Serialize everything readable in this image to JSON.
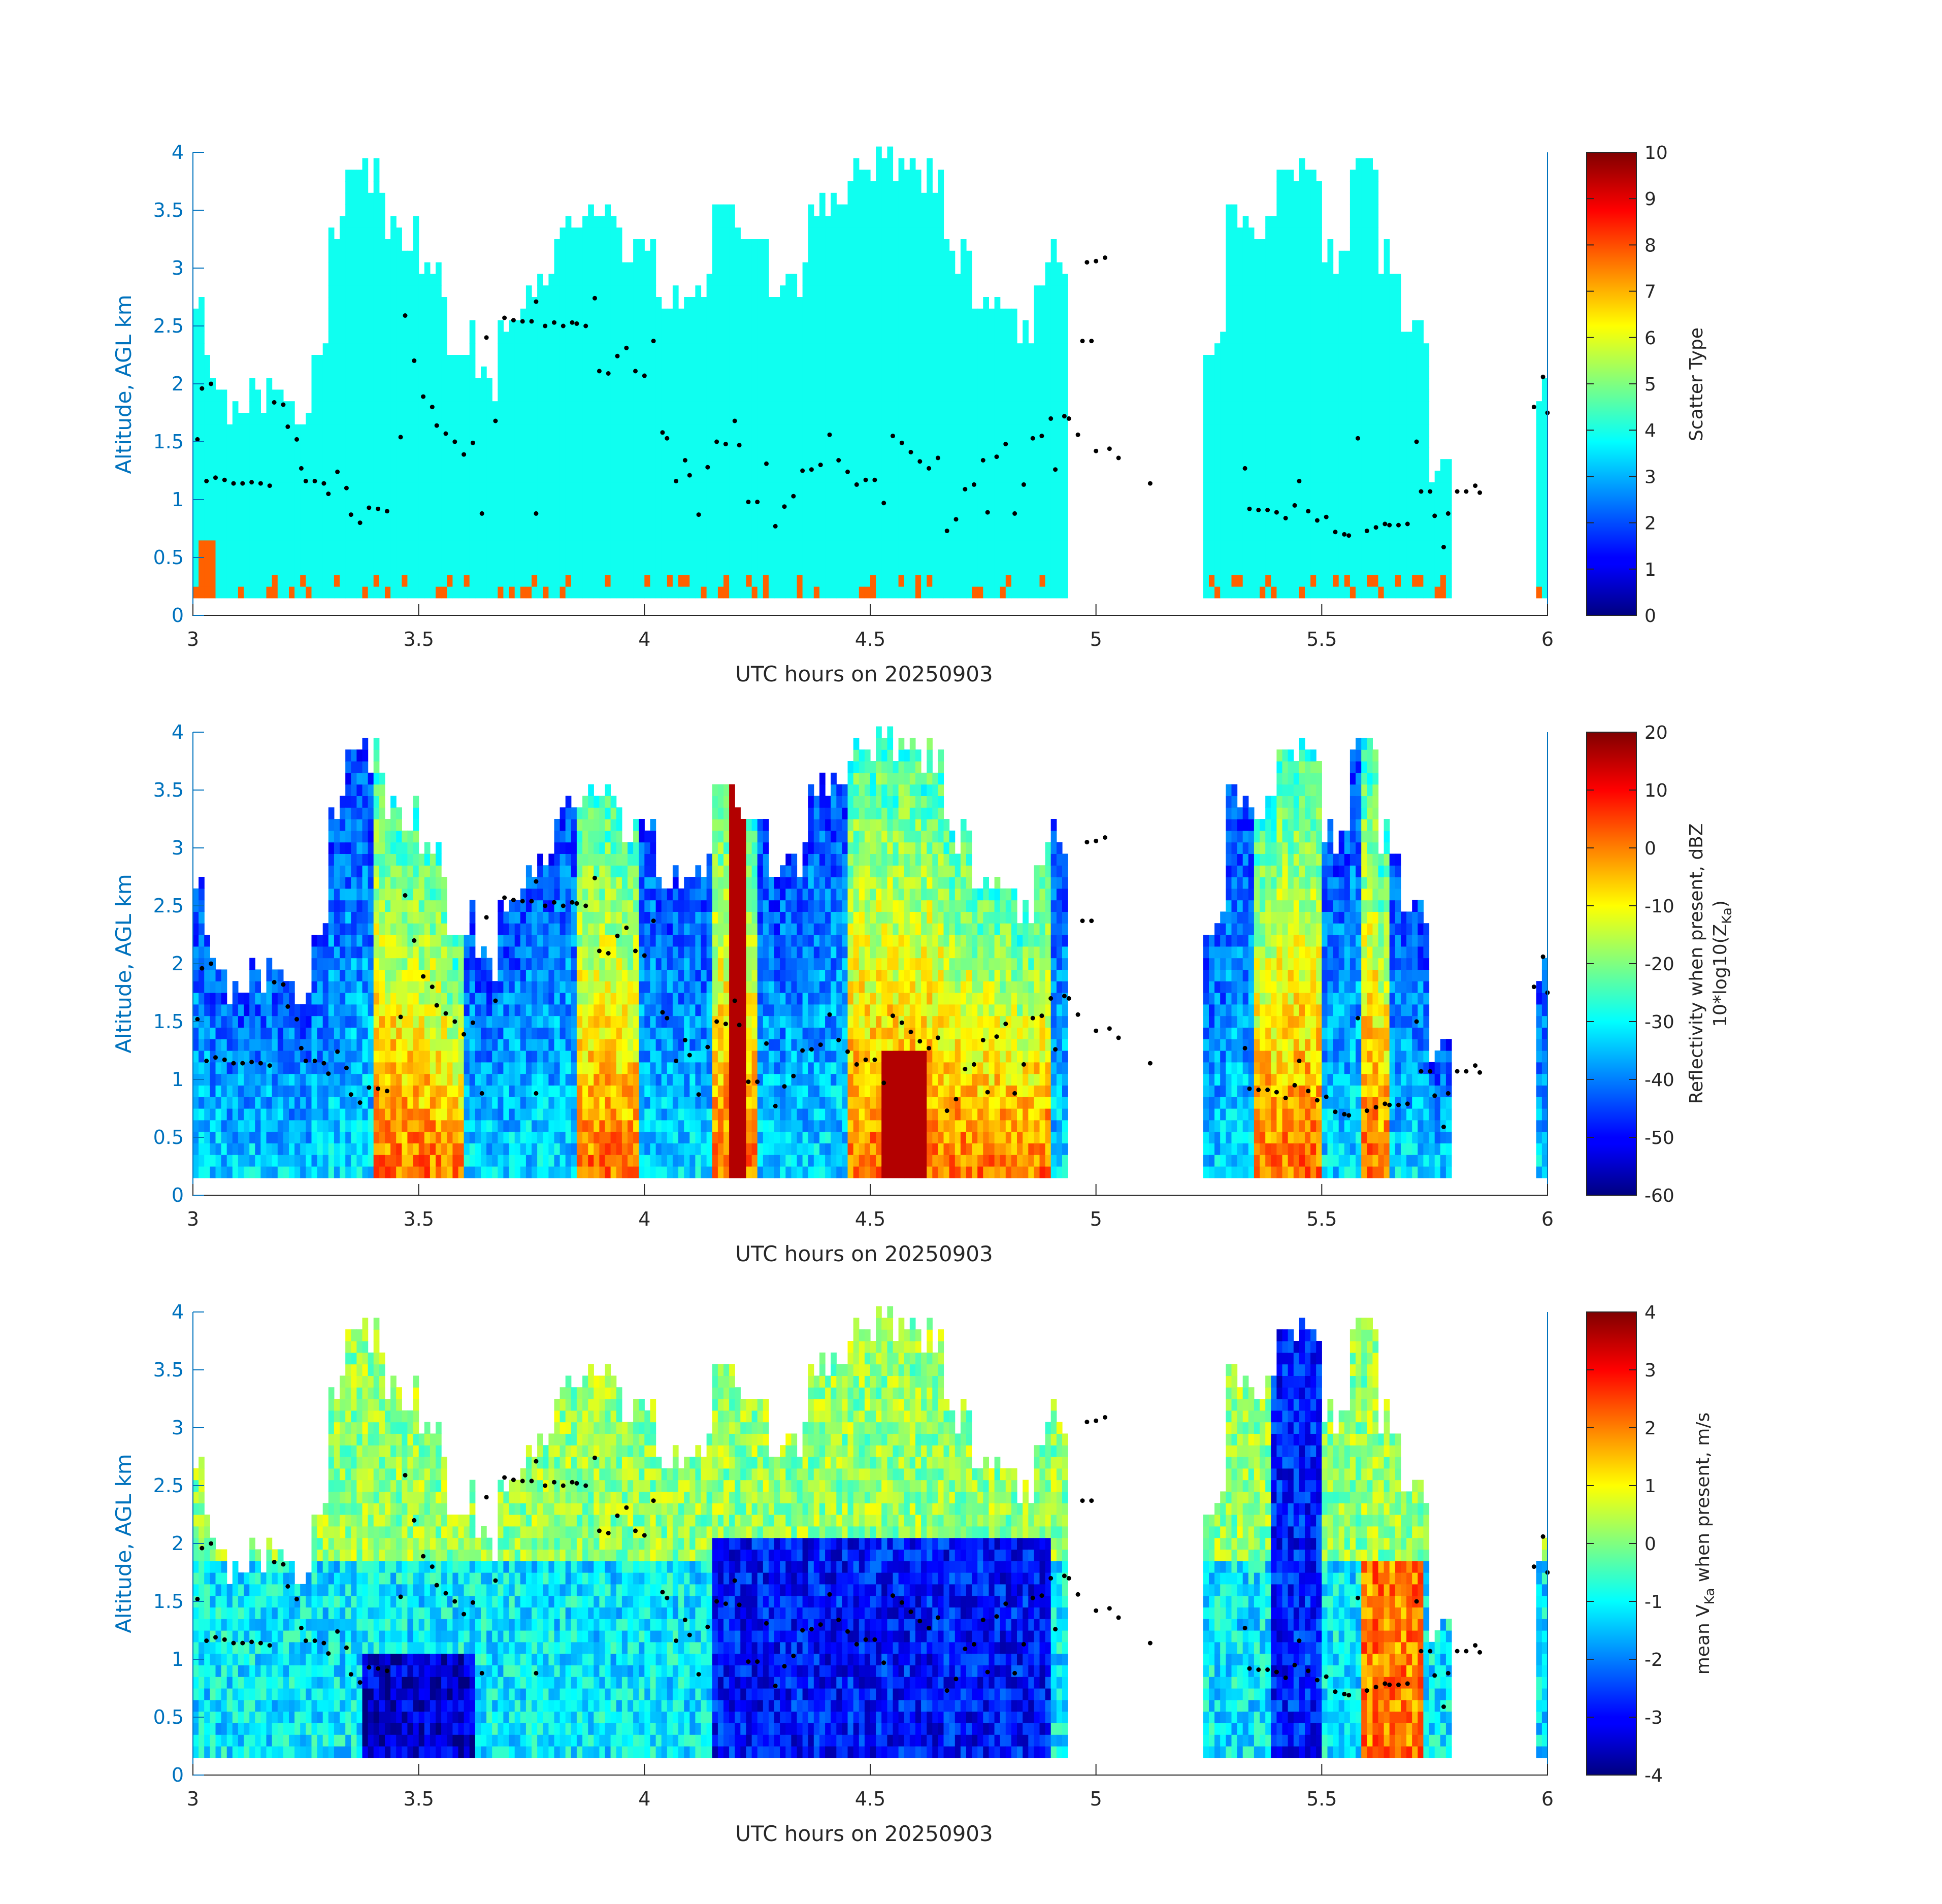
{
  "chart_data": [
    {
      "type": "heatmap",
      "xlabel": "UTC hours on 20250903",
      "ylabel": "Altitude, AGL km",
      "xlim": [
        3,
        6
      ],
      "ylim": [
        0,
        4
      ],
      "xticks": [
        "3",
        "3.5",
        "4",
        "4.5",
        "5",
        "5.5",
        "6"
      ],
      "yticks": [
        "0",
        "0.5",
        "1",
        "1.5",
        "2",
        "2.5",
        "3",
        "3.5",
        "4"
      ],
      "colorbar": {
        "label": "Scatter Type",
        "label_line2": "",
        "clim": [
          0,
          10
        ],
        "ticks": [
          "0",
          "1",
          "2",
          "3",
          "4",
          "5",
          "6",
          "7",
          "8",
          "9",
          "10"
        ]
      },
      "colormap": "jet",
      "field": "scatter",
      "summary": "Dominant scatter type ~3.8 (cyan) through most echo; type ~8 (red-orange) near the surface at isolated times"
    },
    {
      "type": "heatmap",
      "xlabel": "UTC hours on 20250903",
      "ylabel": "Altitude, AGL km",
      "xlim": [
        3,
        6
      ],
      "ylim": [
        0,
        4
      ],
      "xticks": [
        "3",
        "3.5",
        "4",
        "4.5",
        "5",
        "5.5",
        "6"
      ],
      "yticks": [
        "0",
        "0.5",
        "1",
        "1.5",
        "2",
        "2.5",
        "3",
        "3.5",
        "4"
      ],
      "colorbar": {
        "label": "Reflectivity when present, dBZ",
        "label_line2": "10*log10(Z",
        "label_line2_sub": "Ka",
        "label_line2_end": ")",
        "clim": [
          -60,
          20
        ],
        "ticks": [
          "-60",
          "-50",
          "-40",
          "-30",
          "-20",
          "-10",
          "0",
          "10",
          "20"
        ]
      },
      "colormap": "jet",
      "field": "reflectivity"
    },
    {
      "type": "heatmap",
      "xlabel": "UTC hours on 20250903",
      "ylabel": "Altitude, AGL km",
      "xlim": [
        3,
        6
      ],
      "ylim": [
        0,
        4
      ],
      "xticks": [
        "3",
        "3.5",
        "4",
        "4.5",
        "5",
        "5.5",
        "6"
      ],
      "yticks": [
        "0",
        "0.5",
        "1",
        "1.5",
        "2",
        "2.5",
        "3",
        "3.5",
        "4"
      ],
      "colorbar": {
        "label": "mean V",
        "label_sub": "Ka",
        "label_end": " when present, m/s",
        "clim": [
          -4,
          4
        ],
        "ticks": [
          "-4",
          "-3",
          "-2",
          "-1",
          "0",
          "1",
          "2",
          "3",
          "4"
        ]
      },
      "colormap": "jet",
      "field": "velocity"
    }
  ],
  "echo_columns_km": [
    [
      3.0,
      3.03,
      2.7
    ],
    [
      3.03,
      3.06,
      2.2
    ],
    [
      3.06,
      3.12,
      1.9
    ],
    [
      3.12,
      3.2,
      2.0
    ],
    [
      3.2,
      3.26,
      1.8
    ],
    [
      3.26,
      3.3,
      2.4
    ],
    [
      3.3,
      3.34,
      3.4
    ],
    [
      3.34,
      3.42,
      3.9
    ],
    [
      3.42,
      3.5,
      3.4
    ],
    [
      3.5,
      3.56,
      3.0
    ],
    [
      3.56,
      3.62,
      2.5
    ],
    [
      3.62,
      3.68,
      2.1
    ],
    [
      3.68,
      3.73,
      2.6
    ],
    [
      3.73,
      3.8,
      2.9
    ],
    [
      3.8,
      3.86,
      3.4
    ],
    [
      3.86,
      3.95,
      3.6
    ],
    [
      3.95,
      4.02,
      3.3
    ],
    [
      4.02,
      4.1,
      2.9
    ],
    [
      4.1,
      4.15,
      3.0
    ],
    [
      4.15,
      4.2,
      3.8
    ],
    [
      4.2,
      4.28,
      3.4
    ],
    [
      4.28,
      4.36,
      3.0
    ],
    [
      4.36,
      4.45,
      3.7
    ],
    [
      4.45,
      4.52,
      4.0
    ],
    [
      4.52,
      4.58,
      4.0
    ],
    [
      4.58,
      4.66,
      3.9
    ],
    [
      4.66,
      4.72,
      3.2
    ],
    [
      4.72,
      4.8,
      2.8
    ],
    [
      4.8,
      4.86,
      2.6
    ],
    [
      4.86,
      4.9,
      3.0
    ],
    [
      4.9,
      4.94,
      3.2
    ],
    [
      5.24,
      5.29,
      2.5
    ],
    [
      5.29,
      5.34,
      3.6
    ],
    [
      5.34,
      5.4,
      3.4
    ],
    [
      5.4,
      5.45,
      3.9
    ],
    [
      5.45,
      5.5,
      4.0
    ],
    [
      5.5,
      5.56,
      3.2
    ],
    [
      5.56,
      5.62,
      3.9
    ],
    [
      5.62,
      5.68,
      3.2
    ],
    [
      5.68,
      5.74,
      2.6
    ],
    [
      5.74,
      5.79,
      1.4
    ],
    [
      5.98,
      6.0,
      2.1
    ]
  ],
  "cloud_base_km": [
    [
      3.01,
      1.52
    ],
    [
      3.02,
      1.96
    ],
    [
      3.04,
      2.0
    ],
    [
      3.03,
      1.16
    ],
    [
      3.05,
      1.19
    ],
    [
      3.07,
      1.17
    ],
    [
      3.09,
      1.14
    ],
    [
      3.11,
      1.14
    ],
    [
      3.13,
      1.15
    ],
    [
      3.15,
      1.14
    ],
    [
      3.17,
      1.12
    ],
    [
      3.18,
      1.84
    ],
    [
      3.2,
      1.82
    ],
    [
      3.21,
      1.63
    ],
    [
      3.23,
      1.52
    ],
    [
      3.24,
      1.27
    ],
    [
      3.25,
      1.16
    ],
    [
      3.27,
      1.16
    ],
    [
      3.29,
      1.14
    ],
    [
      3.3,
      1.05
    ],
    [
      3.32,
      1.24
    ],
    [
      3.34,
      1.1
    ],
    [
      3.35,
      0.87
    ],
    [
      3.37,
      0.8
    ],
    [
      3.39,
      0.93
    ],
    [
      3.41,
      0.92
    ],
    [
      3.43,
      0.9
    ],
    [
      3.46,
      1.54
    ],
    [
      3.47,
      2.59
    ],
    [
      3.49,
      2.2
    ],
    [
      3.51,
      1.89
    ],
    [
      3.53,
      1.8
    ],
    [
      3.54,
      1.64
    ],
    [
      3.56,
      1.57
    ],
    [
      3.58,
      1.5
    ],
    [
      3.6,
      1.39
    ],
    [
      3.62,
      1.49
    ],
    [
      3.64,
      0.88
    ],
    [
      3.65,
      2.4
    ],
    [
      3.67,
      1.68
    ],
    [
      3.69,
      2.57
    ],
    [
      3.71,
      2.55
    ],
    [
      3.73,
      2.54
    ],
    [
      3.75,
      2.54
    ],
    [
      3.76,
      2.71
    ],
    [
      3.76,
      0.88
    ],
    [
      3.78,
      2.5
    ],
    [
      3.8,
      2.53
    ],
    [
      3.82,
      2.5
    ],
    [
      3.84,
      2.53
    ],
    [
      3.85,
      2.52
    ],
    [
      3.87,
      2.5
    ],
    [
      3.89,
      2.74
    ],
    [
      3.9,
      2.11
    ],
    [
      3.92,
      2.09
    ],
    [
      3.94,
      2.24
    ],
    [
      3.96,
      2.31
    ],
    [
      3.98,
      2.11
    ],
    [
      4.0,
      2.07
    ],
    [
      4.02,
      2.37
    ],
    [
      4.04,
      1.58
    ],
    [
      4.05,
      1.53
    ],
    [
      4.07,
      1.16
    ],
    [
      4.09,
      1.34
    ],
    [
      4.1,
      1.21
    ],
    [
      4.12,
      0.87
    ],
    [
      4.14,
      1.28
    ],
    [
      4.16,
      1.5
    ],
    [
      4.18,
      1.48
    ],
    [
      4.2,
      1.68
    ],
    [
      4.21,
      1.47
    ],
    [
      4.23,
      0.98
    ],
    [
      4.25,
      0.98
    ],
    [
      4.27,
      1.31
    ],
    [
      4.29,
      0.77
    ],
    [
      4.31,
      0.94
    ],
    [
      4.33,
      1.03
    ],
    [
      4.35,
      1.25
    ],
    [
      4.37,
      1.26
    ],
    [
      4.39,
      1.3
    ],
    [
      4.41,
      1.56
    ],
    [
      4.43,
      1.34
    ],
    [
      4.45,
      1.24
    ],
    [
      4.47,
      1.13
    ],
    [
      4.49,
      1.17
    ],
    [
      4.51,
      1.17
    ],
    [
      4.53,
      0.97
    ],
    [
      4.55,
      1.55
    ],
    [
      4.57,
      1.49
    ],
    [
      4.59,
      1.41
    ],
    [
      4.61,
      1.33
    ],
    [
      4.63,
      1.27
    ],
    [
      4.65,
      1.36
    ],
    [
      4.67,
      0.73
    ],
    [
      4.69,
      0.83
    ],
    [
      4.71,
      1.09
    ],
    [
      4.73,
      1.13
    ],
    [
      4.75,
      1.34
    ],
    [
      4.76,
      0.89
    ],
    [
      4.78,
      1.37
    ],
    [
      4.8,
      1.48
    ],
    [
      4.82,
      0.88
    ],
    [
      4.84,
      1.13
    ],
    [
      4.86,
      1.53
    ],
    [
      4.88,
      1.55
    ],
    [
      4.9,
      1.7
    ],
    [
      4.91,
      1.26
    ],
    [
      4.93,
      1.72
    ],
    [
      4.94,
      1.7
    ],
    [
      4.96,
      1.56
    ],
    [
      4.97,
      2.37
    ],
    [
      4.99,
      2.37
    ],
    [
      4.98,
      3.05
    ],
    [
      5.0,
      3.06
    ],
    [
      5.02,
      3.09
    ],
    [
      5.0,
      1.42
    ],
    [
      5.03,
      1.44
    ],
    [
      5.05,
      1.36
    ],
    [
      5.12,
      1.14
    ],
    [
      5.33,
      1.27
    ],
    [
      5.34,
      0.92
    ],
    [
      5.36,
      0.91
    ],
    [
      5.38,
      0.91
    ],
    [
      5.4,
      0.89
    ],
    [
      5.42,
      0.84
    ],
    [
      5.44,
      0.95
    ],
    [
      5.45,
      1.16
    ],
    [
      5.47,
      0.9
    ],
    [
      5.49,
      0.82
    ],
    [
      5.51,
      0.85
    ],
    [
      5.53,
      0.72
    ],
    [
      5.55,
      0.7
    ],
    [
      5.56,
      0.69
    ],
    [
      5.58,
      1.53
    ],
    [
      5.6,
      0.73
    ],
    [
      5.62,
      0.76
    ],
    [
      5.64,
      0.79
    ],
    [
      5.65,
      0.78
    ],
    [
      5.67,
      0.78
    ],
    [
      5.69,
      0.79
    ],
    [
      5.71,
      1.5
    ],
    [
      5.72,
      1.07
    ],
    [
      5.74,
      1.07
    ],
    [
      5.75,
      0.86
    ],
    [
      5.77,
      0.59
    ],
    [
      5.78,
      0.88
    ],
    [
      5.8,
      1.07
    ],
    [
      5.82,
      1.07
    ],
    [
      5.84,
      1.12
    ],
    [
      5.85,
      1.06
    ],
    [
      5.97,
      1.8
    ],
    [
      5.99,
      2.06
    ],
    [
      6.0,
      1.75
    ]
  ]
}
